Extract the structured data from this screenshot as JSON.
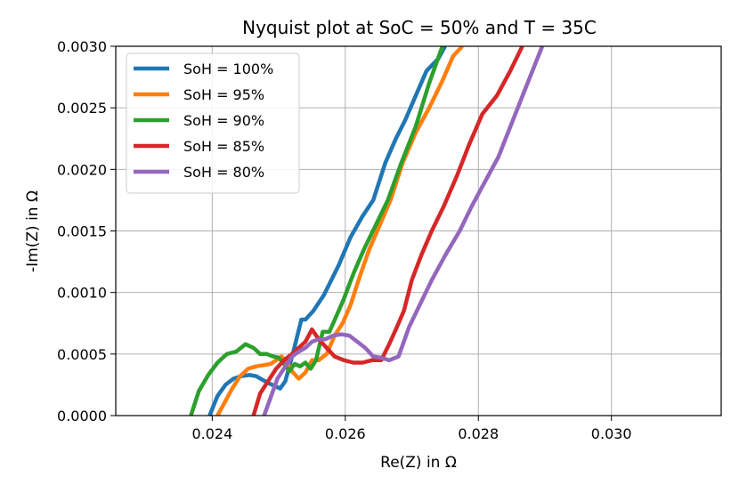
{
  "chart_data": {
    "type": "line",
    "title": "Nyquist plot at SoC = 50% and T = 35C",
    "xlabel": "Re(Z) in Ω",
    "ylabel": "-Im(Z) in Ω",
    "xlim": [
      0.02255,
      0.03165
    ],
    "ylim": [
      0.0,
      0.003
    ],
    "xticks": [
      "0.024",
      "0.026",
      "0.028",
      "0.030"
    ],
    "xtick_values": [
      0.024,
      0.026,
      0.028,
      0.03
    ],
    "yticks": [
      "0.0000",
      "0.0005",
      "0.0010",
      "0.0015",
      "0.0020",
      "0.0025",
      "0.0030"
    ],
    "ytick_values": [
      0.0,
      0.0005,
      0.001,
      0.0015,
      0.002,
      0.0025,
      0.003
    ],
    "grid": true,
    "legend_position": "upper-left",
    "series": [
      {
        "name": "SoH = 100%",
        "color": "#1f77b4",
        "x": [
          0.02396,
          0.02408,
          0.0242,
          0.02432,
          0.02444,
          0.02456,
          0.02466,
          0.02476,
          0.02486,
          0.02494,
          0.02502,
          0.0251,
          0.02516,
          0.02522,
          0.02528,
          0.02534,
          0.0254,
          0.02552,
          0.02568,
          0.0259,
          0.02608,
          0.02626,
          0.02642,
          0.0266,
          0.02676,
          0.0269,
          0.02706,
          0.02722,
          0.0274,
          0.0275
        ],
        "y": [
          0.0,
          0.00016,
          0.00025,
          0.0003,
          0.00032,
          0.00033,
          0.00032,
          0.00029,
          0.00026,
          0.00024,
          0.00022,
          0.00028,
          0.0004,
          0.00052,
          0.00065,
          0.00078,
          0.00078,
          0.00085,
          0.00098,
          0.00122,
          0.00145,
          0.00162,
          0.00175,
          0.00205,
          0.00225,
          0.0024,
          0.0026,
          0.0028,
          0.0029,
          0.003
        ]
      },
      {
        "name": "SoH = 95%",
        "color": "#ff7f0e",
        "x": [
          0.02408,
          0.02418,
          0.0243,
          0.02442,
          0.02454,
          0.02466,
          0.02478,
          0.02488,
          0.02496,
          0.02504,
          0.02512,
          0.0252,
          0.0253,
          0.0254,
          0.0255,
          0.0256,
          0.02572,
          0.02584,
          0.02596,
          0.02608,
          0.0262,
          0.02636,
          0.02652,
          0.02668,
          0.02686,
          0.02706,
          0.02726,
          0.02746,
          0.02762,
          0.02776
        ],
        "y": [
          0.0,
          0.0001,
          0.00022,
          0.00032,
          0.00038,
          0.0004,
          0.00041,
          0.00042,
          0.00045,
          0.00048,
          0.00044,
          0.00036,
          0.0003,
          0.00035,
          0.00045,
          0.00045,
          0.0005,
          0.00065,
          0.00075,
          0.0009,
          0.0011,
          0.00135,
          0.00155,
          0.00175,
          0.00205,
          0.0023,
          0.0025,
          0.00272,
          0.00292,
          0.003
        ]
      },
      {
        "name": "SoH = 90%",
        "color": "#2ca02c",
        "x": [
          0.02368,
          0.0238,
          0.02394,
          0.02408,
          0.02422,
          0.02436,
          0.0245,
          0.02462,
          0.02472,
          0.02482,
          0.02492,
          0.025,
          0.02508,
          0.02516,
          0.02524,
          0.02532,
          0.0254,
          0.02548,
          0.02556,
          0.02566,
          0.02576,
          0.02586,
          0.02598,
          0.02612,
          0.02628,
          0.02646,
          0.02664,
          0.02684,
          0.02706,
          0.02726,
          0.02746
        ],
        "y": [
          0.0,
          0.0002,
          0.00033,
          0.00043,
          0.0005,
          0.00052,
          0.00058,
          0.00055,
          0.0005,
          0.0005,
          0.00048,
          0.00047,
          0.00042,
          0.00036,
          0.00042,
          0.0004,
          0.00043,
          0.00038,
          0.00045,
          0.00068,
          0.00068,
          0.0008,
          0.00095,
          0.00115,
          0.00135,
          0.00155,
          0.00175,
          0.00205,
          0.00235,
          0.0027,
          0.003
        ]
      },
      {
        "name": "SoH = 85%",
        "color": "#d62728",
        "x": [
          0.02462,
          0.02472,
          0.02484,
          0.02496,
          0.02508,
          0.0252,
          0.0253,
          0.0254,
          0.0255,
          0.0256,
          0.02572,
          0.02584,
          0.02598,
          0.02612,
          0.02626,
          0.0264,
          0.02654,
          0.02666,
          0.02676,
          0.02688,
          0.027,
          0.02714,
          0.0273,
          0.02748,
          0.02768,
          0.02786,
          0.02806,
          0.02828,
          0.02848,
          0.02866
        ],
        "y": [
          0.0,
          0.00018,
          0.00028,
          0.00038,
          0.00045,
          0.0005,
          0.00055,
          0.0006,
          0.0007,
          0.00062,
          0.00055,
          0.00048,
          0.00045,
          0.00043,
          0.00043,
          0.00045,
          0.00045,
          0.00058,
          0.0007,
          0.00085,
          0.0011,
          0.0013,
          0.0015,
          0.0017,
          0.00195,
          0.0022,
          0.00245,
          0.0026,
          0.0028,
          0.003
        ]
      },
      {
        "name": "SoH = 80%",
        "color": "#9467bd",
        "x": [
          0.02478,
          0.02488,
          0.02498,
          0.0251,
          0.0252,
          0.0253,
          0.0254,
          0.0255,
          0.0256,
          0.0257,
          0.02582,
          0.02594,
          0.02606,
          0.02618,
          0.0263,
          0.02642,
          0.02654,
          0.02666,
          0.0268,
          0.02696,
          0.02712,
          0.0273,
          0.0275,
          0.02772,
          0.0279,
          0.0281,
          0.0283,
          0.02852,
          0.02874,
          0.02896
        ],
        "y": [
          0.0,
          0.00015,
          0.0003,
          0.0004,
          0.00048,
          0.00052,
          0.00055,
          0.0006,
          0.00062,
          0.00062,
          0.00065,
          0.00066,
          0.00065,
          0.0006,
          0.00055,
          0.00048,
          0.00047,
          0.00045,
          0.00048,
          0.00072,
          0.0009,
          0.0011,
          0.0013,
          0.0015,
          0.0017,
          0.0019,
          0.0021,
          0.0024,
          0.0027,
          0.003
        ]
      }
    ]
  }
}
